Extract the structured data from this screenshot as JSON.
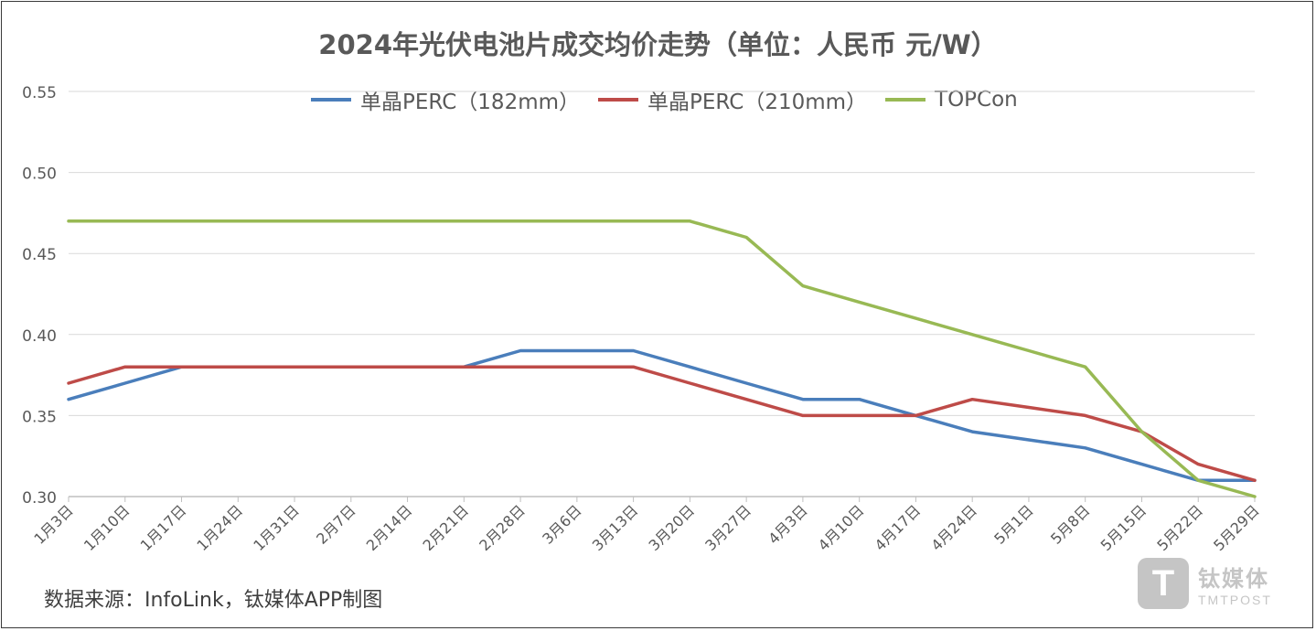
{
  "chart_data": {
    "type": "line",
    "title": "2024年光伏电池片成交均价走势（单位：人民币 元/W）",
    "categories": [
      "1月3日",
      "1月10日",
      "1月17日",
      "1月24日",
      "1月31日",
      "2月7日",
      "2月14日",
      "2月21日",
      "2月28日",
      "3月6日",
      "3月13日",
      "3月20日",
      "3月27日",
      "4月3日",
      "4月10日",
      "4月17日",
      "4月24日",
      "5月1日",
      "5月8日",
      "5月15日",
      "5月22日",
      "5月29日"
    ],
    "series": [
      {
        "name": "单晶PERC（182mm）",
        "color": "#4a7ebb",
        "values": [
          0.36,
          0.37,
          0.38,
          0.38,
          0.38,
          0.38,
          0.38,
          0.38,
          0.39,
          0.39,
          0.39,
          0.38,
          0.37,
          0.36,
          0.36,
          0.35,
          0.34,
          0.335,
          0.33,
          0.32,
          0.31,
          0.31
        ]
      },
      {
        "name": "单晶PERC（210mm）",
        "color": "#be4b48",
        "values": [
          0.37,
          0.38,
          0.38,
          0.38,
          0.38,
          0.38,
          0.38,
          0.38,
          0.38,
          0.38,
          0.38,
          0.37,
          0.36,
          0.35,
          0.35,
          0.35,
          0.36,
          0.355,
          0.35,
          0.34,
          0.32,
          0.31
        ]
      },
      {
        "name": "TOPCon",
        "color": "#98b954",
        "values": [
          0.47,
          0.47,
          0.47,
          0.47,
          0.47,
          0.47,
          0.47,
          0.47,
          0.47,
          0.47,
          0.47,
          0.47,
          0.46,
          0.43,
          0.42,
          0.41,
          0.4,
          0.39,
          0.38,
          0.34,
          0.31,
          0.3
        ]
      }
    ],
    "ylim": [
      0.3,
      0.55
    ],
    "yticks": [
      "0.30",
      "0.35",
      "0.40",
      "0.45",
      "0.50",
      "0.55"
    ],
    "xlabel": "",
    "ylabel": "",
    "grid": true,
    "legend_position": "top"
  },
  "source_note": "数据来源：InfoLink，钛媒体APP制图",
  "watermark": {
    "brand_cn": "钛媒体",
    "brand_en": "TMTPOST",
    "logo_letter": "T"
  }
}
